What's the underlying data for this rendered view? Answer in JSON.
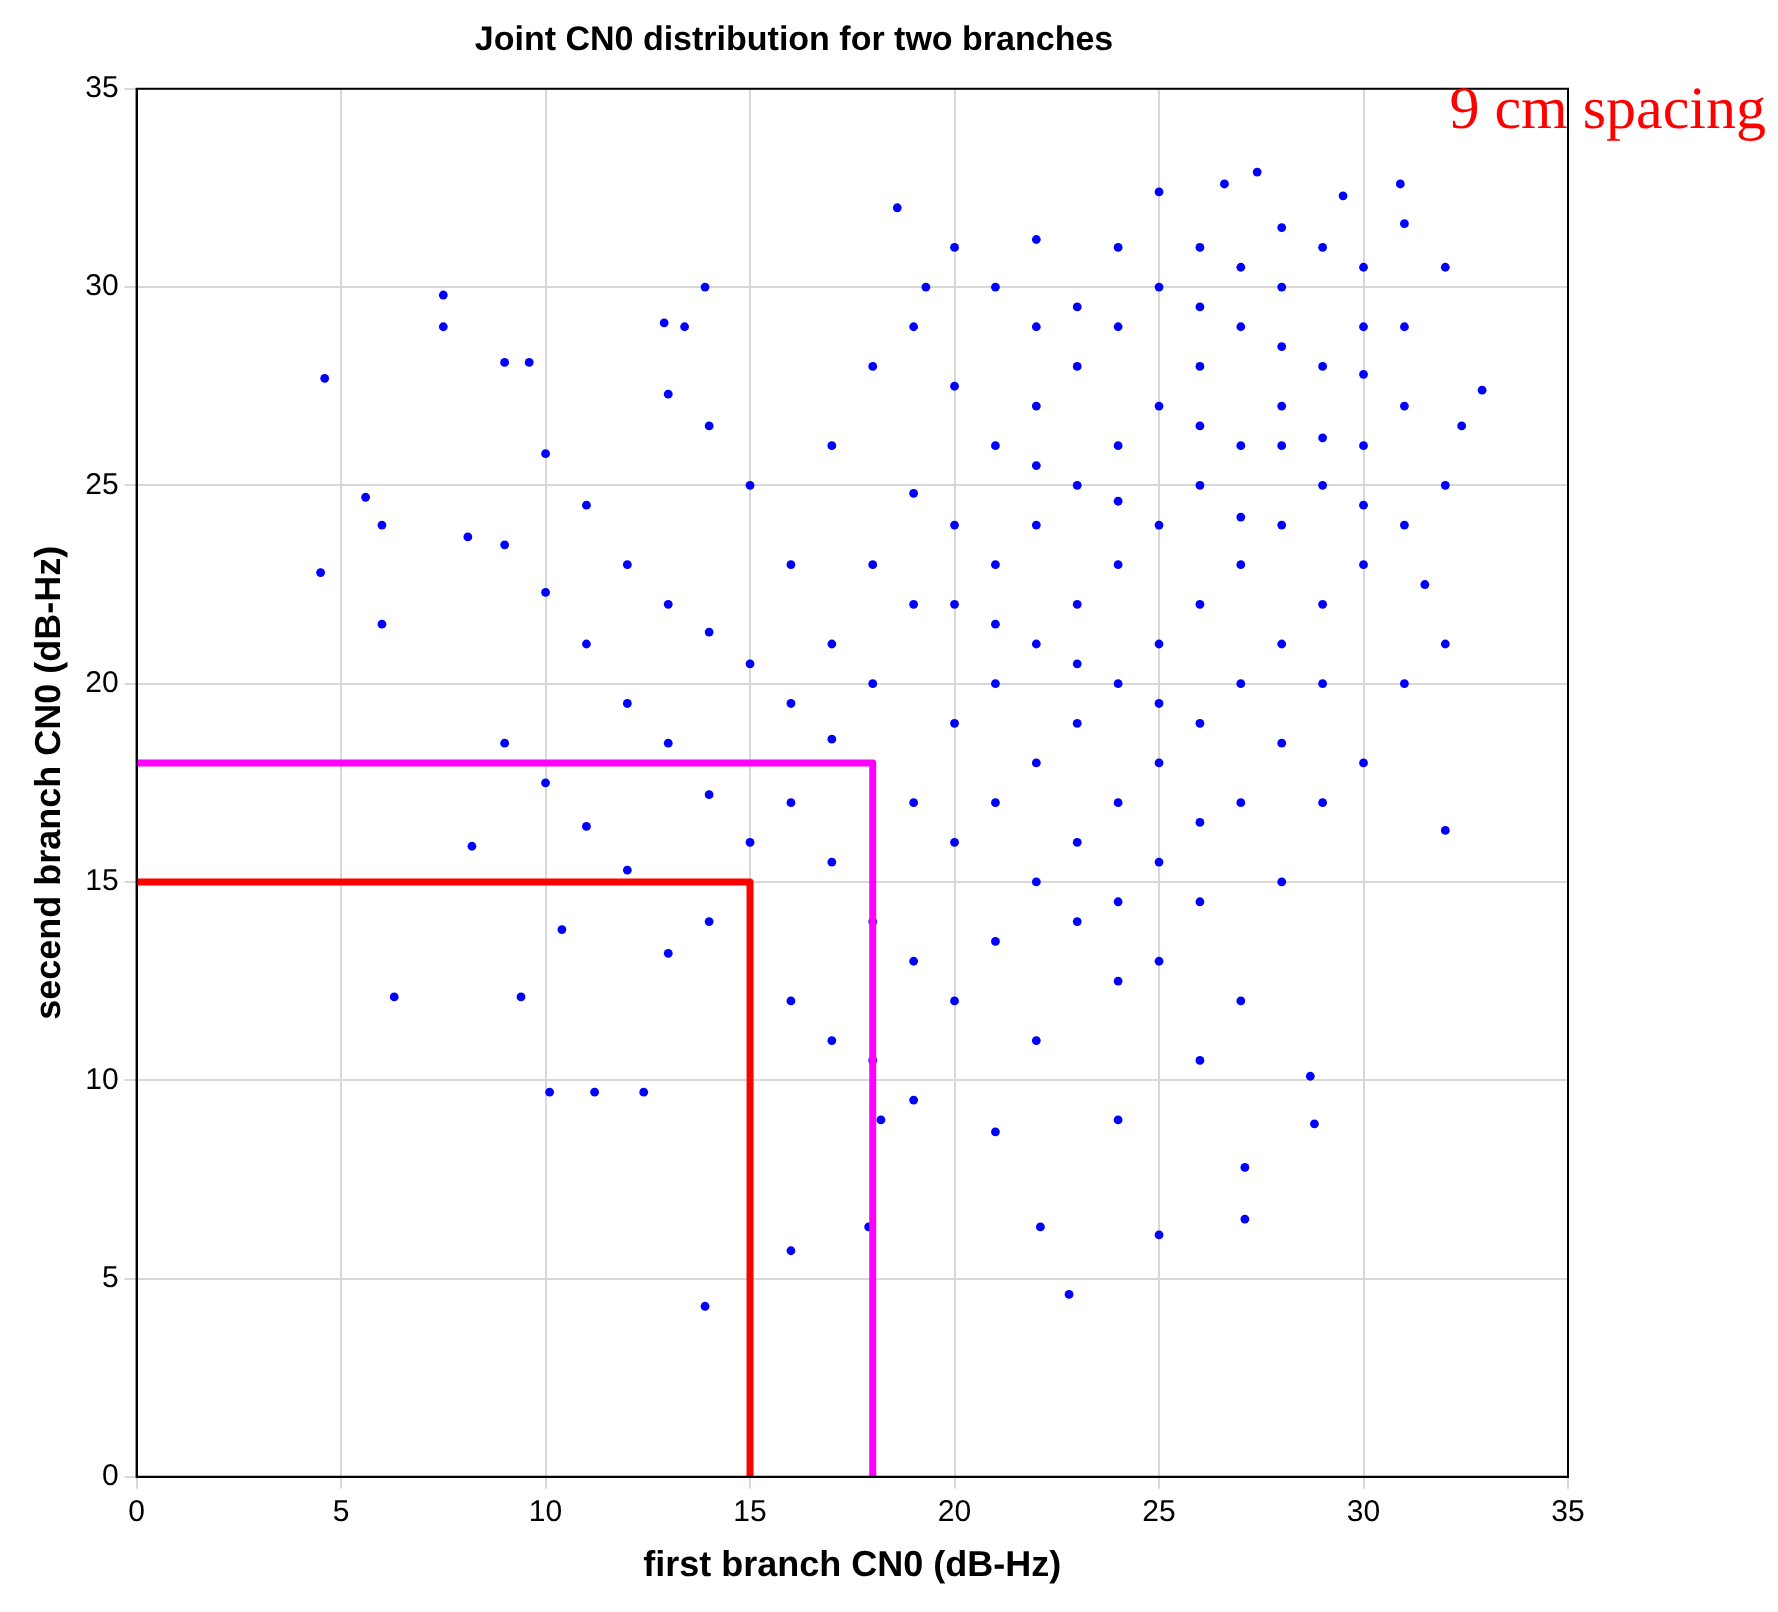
{
  "chart_data": {
    "type": "scatter",
    "title": "Joint CN0 distribution for two branches",
    "xlabel": "first branch CN0 (dB-Hz)",
    "ylabel": "secend branch CN0 (dB-Hz)",
    "xlim": [
      0,
      35
    ],
    "ylim": [
      0,
      35
    ],
    "xticks": [
      0,
      5,
      10,
      15,
      20,
      25,
      30,
      35
    ],
    "yticks": [
      0,
      5,
      10,
      15,
      20,
      25,
      30,
      35
    ],
    "grid": true,
    "annotations": [
      "9 cm spacing"
    ],
    "series": [
      {
        "marker": "circle",
        "color": "#0000ff",
        "x": [
          4.5,
          4.6,
          5.6,
          6.0,
          6.0,
          6.3,
          7.5,
          7.5,
          8.1,
          8.2,
          9.0,
          9.4,
          9.6,
          10.1,
          10.4,
          11.2,
          12.4,
          12.9,
          13.4,
          13.9,
          13.9,
          16.0,
          18.2,
          17.9,
          22.1,
          22.8,
          25.0,
          27.1,
          27.1,
          28.8,
          28.7,
          32.0,
          32.9,
          32.4,
          27.4,
          26.6,
          25.0,
          30.9,
          29.5,
          18.6,
          19.3,
          20,
          21,
          22,
          23,
          24,
          25,
          26,
          27,
          28,
          22,
          23,
          24,
          25,
          26,
          27,
          28,
          29,
          30,
          20,
          21,
          22,
          23,
          24,
          25,
          26,
          27,
          28,
          29,
          30,
          31,
          19,
          20,
          21,
          22,
          23,
          24,
          25,
          26,
          27,
          28,
          29,
          30,
          31,
          18,
          19,
          20,
          21,
          22,
          23,
          24,
          25,
          26,
          27,
          28,
          29,
          30,
          31,
          17,
          16,
          15,
          14,
          13,
          12,
          11,
          10,
          16,
          15,
          14,
          13,
          17,
          18,
          19,
          20,
          21,
          22,
          23,
          24,
          17,
          18,
          19,
          20,
          21,
          22,
          23,
          24,
          25,
          26,
          27,
          28,
          29,
          30,
          31,
          32,
          31.5,
          32,
          31,
          32,
          30,
          29,
          28,
          27,
          26,
          25,
          24,
          16,
          15,
          14,
          13,
          12,
          11,
          10,
          9,
          14,
          13,
          12,
          11,
          10,
          9,
          16,
          17,
          18,
          19,
          21,
          24,
          26,
          25,
          23,
          21,
          19,
          18,
          17,
          22,
          24,
          26,
          28,
          27,
          29,
          30,
          20,
          22,
          26,
          28
        ],
        "values": [
          22.8,
          27.7,
          24.7,
          24.0,
          21.5,
          12.1,
          29.8,
          29.0,
          23.7,
          15.9,
          28.1,
          12.1,
          28.1,
          9.7,
          13.8,
          9.7,
          9.7,
          29.1,
          29.0,
          30.0,
          4.3,
          5.7,
          9.0,
          6.3,
          6.3,
          4.6,
          6.1,
          6.5,
          7.8,
          8.9,
          10.1,
          16.3,
          27.4,
          26.5,
          32.9,
          32.6,
          32.4,
          32.6,
          32.3,
          32.0,
          30.0,
          22,
          23,
          24,
          25,
          26,
          27,
          28,
          29,
          30,
          21,
          22,
          23,
          24,
          25,
          26,
          27,
          28,
          29,
          19,
          20,
          18,
          19,
          20,
          21,
          22,
          23,
          24,
          25,
          26,
          27,
          17,
          16,
          17,
          15,
          16,
          17,
          18,
          19,
          20,
          21,
          22,
          23,
          24,
          20,
          22,
          24,
          26,
          27,
          28,
          29,
          30,
          31,
          30.5,
          31.5,
          31,
          30.5,
          31.6,
          18.6,
          19.5,
          20.5,
          21.3,
          22,
          23,
          24.5,
          25.8,
          23,
          25,
          26.5,
          27.3,
          26,
          28,
          29,
          31,
          30,
          31.2,
          29.5,
          31,
          15.5,
          14,
          13,
          12,
          13.5,
          11,
          14,
          12.5,
          13,
          14.5,
          12,
          15,
          17,
          18,
          20,
          21,
          22.5,
          25,
          29,
          30.5,
          24.5,
          20,
          18.5,
          17,
          16.5,
          15.5,
          14.5,
          17,
          16,
          17.2,
          18.5,
          19.5,
          21,
          22.3,
          23.5,
          14,
          13.2,
          15.3,
          16.4,
          17.5,
          18.5,
          12,
          11,
          10.5,
          9.5,
          8.7,
          9,
          10.5,
          19.5,
          20.5,
          21.5,
          24.8,
          23,
          21,
          25.5,
          24.6,
          26.5,
          28.5,
          24.2,
          26.2,
          27.8,
          27.5,
          29,
          29.5,
          26
        ]
      },
      {
        "type": "line",
        "marker": "none",
        "color": "#ff00ff",
        "x": [
          0,
          18,
          18
        ],
        "values": [
          18,
          18,
          0
        ]
      },
      {
        "type": "line",
        "marker": "none",
        "color": "#ff0000",
        "x": [
          0,
          15,
          15
        ],
        "values": [
          15,
          15,
          0
        ]
      }
    ]
  }
}
